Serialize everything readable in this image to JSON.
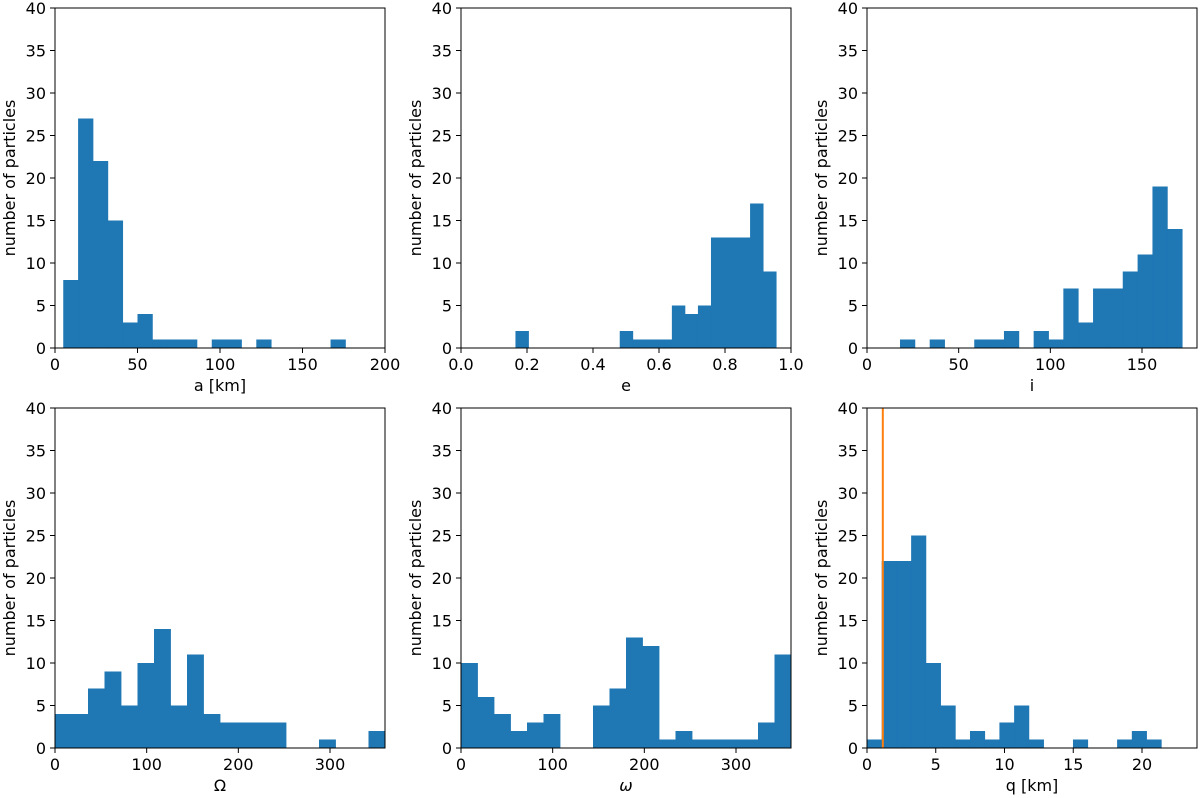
{
  "colors": {
    "bar": "#1f77b4",
    "marker_line": "#ff7f0e",
    "axis": "#000000"
  },
  "chart_data": [
    {
      "type": "bar",
      "title": "",
      "xlabel": "a [km]",
      "ylabel": "number of particles",
      "xlim": [
        0,
        200
      ],
      "ylim": [
        0,
        40
      ],
      "xticks": [
        0,
        50,
        100,
        150,
        200
      ],
      "xtick_labels": [
        "0",
        "50",
        "100",
        "150",
        "200"
      ],
      "yticks": [
        0,
        5,
        10,
        15,
        20,
        25,
        30,
        35,
        40
      ],
      "ytick_labels": [
        "0",
        "5",
        "10",
        "15",
        "20",
        "25",
        "30",
        "35",
        "40"
      ],
      "bin_start": 5,
      "bin_width": 9,
      "values": [
        8,
        27,
        22,
        15,
        3,
        4,
        1,
        1,
        1,
        0,
        1,
        1,
        0,
        1,
        0,
        0,
        0,
        0,
        1,
        0
      ]
    },
    {
      "type": "bar",
      "title": "",
      "xlabel": "e",
      "ylabel": "number of particles",
      "xlim": [
        0,
        1
      ],
      "ylim": [
        0,
        40
      ],
      "xticks": [
        0,
        0.2,
        0.4,
        0.6,
        0.8,
        1.0
      ],
      "xtick_labels": [
        "0.0",
        "0.2",
        "0.4",
        "0.6",
        "0.8",
        "1.0"
      ],
      "yticks": [
        0,
        5,
        10,
        15,
        20,
        25,
        30,
        35,
        40
      ],
      "ytick_labels": [
        "0",
        "5",
        "10",
        "15",
        "20",
        "25",
        "30",
        "35",
        "40"
      ],
      "bin_start": 0.165,
      "bin_width": 0.0395,
      "values": [
        2,
        0,
        0,
        0,
        0,
        0,
        0,
        0,
        2,
        1,
        1,
        1,
        5,
        4,
        5,
        13,
        13,
        13,
        17,
        9
      ]
    },
    {
      "type": "bar",
      "title": "",
      "xlabel": "i",
      "ylabel": "number of particles",
      "xlim": [
        0,
        180
      ],
      "ylim": [
        0,
        40
      ],
      "xticks": [
        0,
        50,
        100,
        150
      ],
      "xtick_labels": [
        "0",
        "50",
        "100",
        "150"
      ],
      "yticks": [
        0,
        5,
        10,
        15,
        20,
        25,
        30,
        35,
        40
      ],
      "ytick_labels": [
        "0",
        "5",
        "10",
        "15",
        "20",
        "25",
        "30",
        "35",
        "40"
      ],
      "bin_start": 18,
      "bin_width": 8.1,
      "values": [
        1,
        0,
        1,
        0,
        0,
        1,
        1,
        2,
        0,
        2,
        1,
        7,
        3,
        7,
        7,
        9,
        11,
        19,
        14,
        0
      ]
    },
    {
      "type": "bar",
      "title": "",
      "xlabel": "Ω",
      "ylabel": "number of particles",
      "xlim": [
        0,
        360
      ],
      "ylim": [
        0,
        40
      ],
      "xticks": [
        0,
        100,
        200,
        300
      ],
      "xtick_labels": [
        "0",
        "100",
        "200",
        "300"
      ],
      "yticks": [
        0,
        5,
        10,
        15,
        20,
        25,
        30,
        35,
        40
      ],
      "ytick_labels": [
        "0",
        "5",
        "10",
        "15",
        "20",
        "25",
        "30",
        "35",
        "40"
      ],
      "bin_start": 0,
      "bin_width": 18,
      "values": [
        4,
        4,
        7,
        9,
        5,
        10,
        14,
        5,
        11,
        4,
        3,
        3,
        3,
        3,
        0,
        0,
        1,
        0,
        0,
        2
      ]
    },
    {
      "type": "bar",
      "title": "",
      "xlabel": "ω",
      "ylabel": "number of particles",
      "xlim": [
        0,
        360
      ],
      "ylim": [
        0,
        40
      ],
      "xticks": [
        0,
        100,
        200,
        300
      ],
      "xtick_labels": [
        "0",
        "100",
        "200",
        "300"
      ],
      "yticks": [
        0,
        5,
        10,
        15,
        20,
        25,
        30,
        35,
        40
      ],
      "ytick_labels": [
        "0",
        "5",
        "10",
        "15",
        "20",
        "25",
        "30",
        "35",
        "40"
      ],
      "bin_start": 0,
      "bin_width": 18,
      "values": [
        10,
        6,
        4,
        2,
        3,
        4,
        0,
        0,
        5,
        7,
        13,
        12,
        1,
        2,
        1,
        1,
        1,
        1,
        3,
        11
      ]
    },
    {
      "type": "bar",
      "title": "",
      "xlabel": "q [km]",
      "ylabel": "number of particles",
      "xlim": [
        0,
        24
      ],
      "ylim": [
        0,
        40
      ],
      "xticks": [
        0,
        5,
        10,
        15,
        20
      ],
      "xtick_labels": [
        "0",
        "5",
        "10",
        "15",
        "20"
      ],
      "yticks": [
        0,
        5,
        10,
        15,
        20,
        25,
        30,
        35,
        40
      ],
      "ytick_labels": [
        "0",
        "5",
        "10",
        "15",
        "20",
        "25",
        "30",
        "35",
        "40"
      ],
      "bin_start": 0,
      "bin_width": 1.07,
      "values": [
        1,
        22,
        22,
        25,
        10,
        5,
        1,
        2,
        1,
        3,
        5,
        1,
        0,
        0,
        1,
        0,
        0,
        1,
        2,
        1
      ],
      "vline_x": 1.15
    }
  ]
}
